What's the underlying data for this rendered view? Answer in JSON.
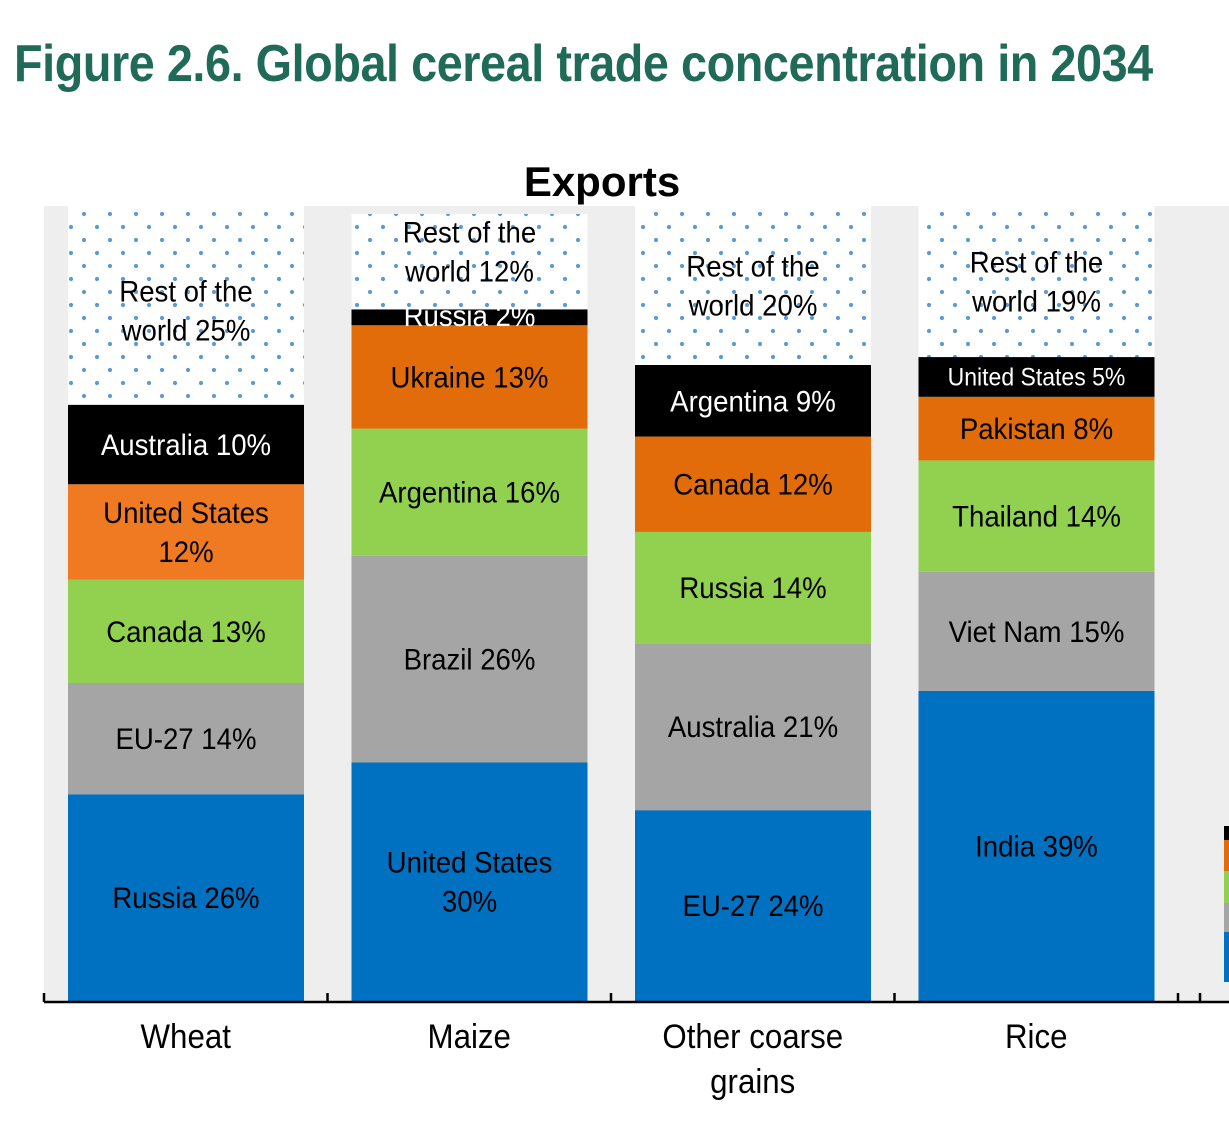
{
  "figure": {
    "title": "Figure 2.6. Global cereal trade concentration in 2034"
  },
  "colors": {
    "blue": "#0070c0",
    "gray": "#a5a5a5",
    "green": "#92d050",
    "orange": "#f07a22",
    "dark_orange": "#e36c0a",
    "black": "#000000",
    "dots": "#5b9bd5",
    "panel_bg": "#eeeeee"
  },
  "chart_data": {
    "type": "bar",
    "stacked": true,
    "title": "Exports",
    "ylim": [
      0,
      100
    ],
    "categories": [
      {
        "name": "Wheat",
        "segments": [
          {
            "country": "Russia",
            "value": 26,
            "label": "Russia 26%",
            "color": "blue"
          },
          {
            "country": "EU-27",
            "value": 14,
            "label": "EU-27 14%",
            "color": "gray"
          },
          {
            "country": "Canada",
            "value": 13,
            "label": "Canada 13%",
            "color": "green"
          },
          {
            "country": "United States",
            "value": 12,
            "label": "United States 12%",
            "color": "orange"
          },
          {
            "country": "Australia",
            "value": 10,
            "label": "Australia 10%",
            "color": "black"
          },
          {
            "country": "Rest of the world",
            "value": 25,
            "label": "Rest of the world 25%",
            "color": "dots"
          }
        ]
      },
      {
        "name": "Maize",
        "segments": [
          {
            "country": "United States",
            "value": 30,
            "label": "United States 30%",
            "color": "blue"
          },
          {
            "country": "Brazil",
            "value": 26,
            "label": "Brazil 26%",
            "color": "gray"
          },
          {
            "country": "Argentina",
            "value": 16,
            "label": "Argentina 16%",
            "color": "green"
          },
          {
            "country": "Ukraine",
            "value": 13,
            "label": "Ukraine 13%",
            "color": "dark_orange"
          },
          {
            "country": "Russia",
            "value": 2,
            "label": "Russia 2%",
            "color": "black"
          },
          {
            "country": "Rest of the world",
            "value": 12,
            "label": "Rest of the world 12%",
            "color": "dots"
          }
        ]
      },
      {
        "name": "Other coarse grains",
        "segments": [
          {
            "country": "EU-27",
            "value": 24,
            "label": "EU-27 24%",
            "color": "blue"
          },
          {
            "country": "Australia",
            "value": 21,
            "label": "Australia 21%",
            "color": "gray"
          },
          {
            "country": "Russia",
            "value": 14,
            "label": "Russia 14%",
            "color": "green"
          },
          {
            "country": "Canada",
            "value": 12,
            "label": "Canada 12%",
            "color": "dark_orange"
          },
          {
            "country": "Argentina",
            "value": 9,
            "label": "Argentina 9%",
            "color": "black"
          },
          {
            "country": "Rest of the world",
            "value": 20,
            "label": "Rest of the world 20%",
            "color": "dots"
          }
        ]
      },
      {
        "name": "Rice",
        "segments": [
          {
            "country": "India",
            "value": 39,
            "label": "India 39%",
            "color": "blue"
          },
          {
            "country": "Viet Nam",
            "value": 15,
            "label": "Viet Nam 15%",
            "color": "gray"
          },
          {
            "country": "Thailand",
            "value": 14,
            "label": "Thailand 14%",
            "color": "green"
          },
          {
            "country": "Pakistan",
            "value": 8,
            "label": "Pakistan 8%",
            "color": "dark_orange"
          },
          {
            "country": "United States",
            "value": 5,
            "label": "United States 5%",
            "color": "black"
          },
          {
            "country": "Rest of the world",
            "value": 19,
            "label": "Rest of the world 19%",
            "color": "dots"
          }
        ]
      }
    ],
    "axis_labels": [
      [
        "Wheat"
      ],
      [
        "Maize"
      ],
      [
        "Other coarse",
        "grains"
      ],
      [
        "Rice"
      ]
    ],
    "segment_label_lines": {
      "Wheat": [
        [
          "Russia 26%"
        ],
        [
          "EU-27 14%"
        ],
        [
          "Canada 13%"
        ],
        [
          "United States",
          "12%"
        ],
        [
          "Australia 10%"
        ],
        [
          "Rest of the",
          "world 25%"
        ]
      ],
      "Maize": [
        [
          "United States",
          "30%"
        ],
        [
          "Brazil 26%"
        ],
        [
          "Argentina 16%"
        ],
        [
          "Ukraine 13%"
        ],
        [
          "Russia 2%"
        ],
        [
          "Rest of the",
          "world 12%"
        ]
      ],
      "Other coarse grains": [
        [
          "EU-27 24%"
        ],
        [
          "Australia 21%"
        ],
        [
          "Russia 14%"
        ],
        [
          "Canada 12%"
        ],
        [
          "Argentina 9%"
        ],
        [
          "Rest of the",
          "world 20%"
        ]
      ],
      "Rice": [
        [
          "India 39%"
        ],
        [
          "Viet Nam 15%"
        ],
        [
          "Thailand 14%"
        ],
        [
          "Pakistan 8%"
        ],
        [
          "United States 5%"
        ],
        [
          "Rest of the",
          "world 19%"
        ]
      ]
    },
    "next_panel_partial": {
      "segments_visible": [
        "black",
        "dark_orange",
        "green",
        "gray",
        "blue"
      ]
    }
  }
}
